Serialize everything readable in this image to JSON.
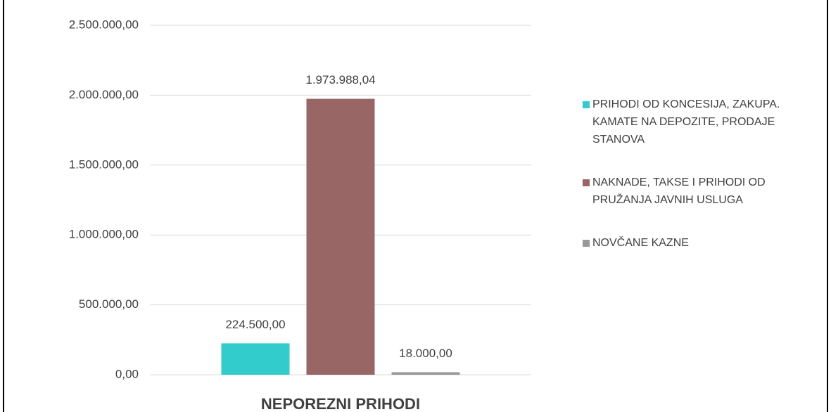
{
  "chart_data": {
    "type": "bar",
    "categories": [
      "NEPOREZNI PRIHODI"
    ],
    "series": [
      {
        "name": "PRIHODI OD KONCESIJA, ZAKUPA. KAMATE NA DEPOZITE, PRODAJE STANOVA",
        "color": "#33cccc",
        "values": [
          224500
        ],
        "value_labels": [
          "224.500,00"
        ]
      },
      {
        "name": "NAKNADE, TAKSE I PRIHODI OD PRUŽANJA JAVNIH USLUGA",
        "color": "#996666",
        "values": [
          1973988.04
        ],
        "value_labels": [
          "1.973.988,04"
        ]
      },
      {
        "name": "NOVČANE KAZNE",
        "color": "#999999",
        "values": [
          18000
        ],
        "value_labels": [
          "18.000,00"
        ]
      }
    ],
    "ylim": [
      0,
      2500000
    ],
    "yticks": [
      {
        "value": 0,
        "label": "0,00"
      },
      {
        "value": 500000,
        "label": "500.000,00"
      },
      {
        "value": 1000000,
        "label": "1.000.000,00"
      },
      {
        "value": 1500000,
        "label": "1.500.000,00"
      },
      {
        "value": 2000000,
        "label": "2.000.000,00"
      },
      {
        "value": 2500000,
        "label": "2.500.000,00"
      }
    ],
    "grid": true,
    "legend": "right"
  }
}
